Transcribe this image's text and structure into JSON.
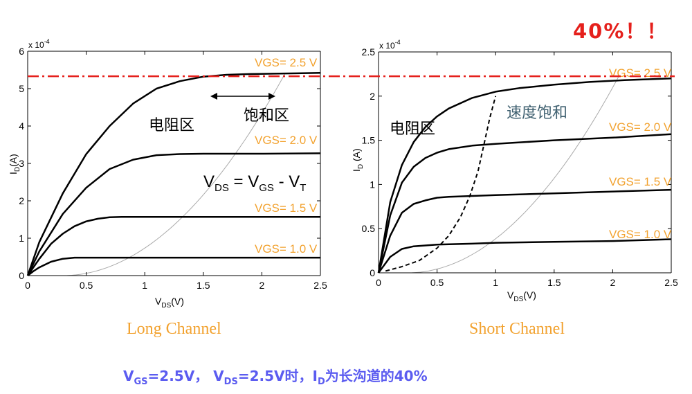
{
  "headline": {
    "text": "40%！！",
    "color": "#e5201c"
  },
  "footer": {
    "vgs_main": "V",
    "vgs_sub": "GS",
    "vgs_rest": "=2.5V，",
    "vds_main": "V",
    "vds_sub": "DS",
    "vds_rest": "=2.5V时，",
    "id_main": "I",
    "id_sub": "D",
    "id_rest": "为长沟道的40%"
  },
  "colors": {
    "curve": "#000000",
    "parabola": "#aaaaaa",
    "vgs_label": "#f2a22f",
    "ref_line": "#e5201c",
    "annotation": "#3f6070"
  },
  "chart_data": [
    {
      "type": "line",
      "caption": "Long Channel",
      "ylabel": "I_D(A)",
      "xlabel": "V_DS(V)",
      "exponent_label": "x 10",
      "exponent_power": "-4",
      "xlim": [
        0,
        2.5
      ],
      "ylim": [
        0,
        6
      ],
      "xticks": [
        "0",
        "0.5",
        "1",
        "1.5",
        "2",
        "2.5"
      ],
      "yticks": [
        "0",
        "1",
        "2",
        "3",
        "4",
        "5",
        "6"
      ],
      "series": [
        {
          "name": "VGS= 2.5 V",
          "x": [
            0,
            0.1,
            0.3,
            0.5,
            0.7,
            0.9,
            1.1,
            1.3,
            1.5,
            1.7,
            1.9,
            2.1,
            2.3,
            2.5
          ],
          "y": [
            0,
            0.9,
            2.2,
            3.25,
            4.0,
            4.6,
            5.0,
            5.2,
            5.32,
            5.37,
            5.39,
            5.4,
            5.41,
            5.42
          ]
        },
        {
          "name": "VGS= 2.0 V",
          "x": [
            0,
            0.1,
            0.3,
            0.5,
            0.7,
            0.9,
            1.1,
            1.3,
            1.5,
            1.7,
            2.0,
            2.5
          ],
          "y": [
            0,
            0.65,
            1.65,
            2.35,
            2.85,
            3.1,
            3.22,
            3.25,
            3.26,
            3.26,
            3.26,
            3.27
          ]
        },
        {
          "name": "VGS= 1.5 V",
          "x": [
            0,
            0.1,
            0.2,
            0.3,
            0.4,
            0.5,
            0.6,
            0.7,
            0.8,
            0.9,
            1.0,
            1.5,
            2.0,
            2.5
          ],
          "y": [
            0,
            0.45,
            0.85,
            1.12,
            1.32,
            1.45,
            1.52,
            1.56,
            1.57,
            1.57,
            1.57,
            1.57,
            1.57,
            1.57
          ]
        },
        {
          "name": "VGS= 1.0 V",
          "x": [
            0,
            0.05,
            0.1,
            0.2,
            0.3,
            0.4,
            0.5,
            0.6,
            1.0,
            1.5,
            2.0,
            2.5
          ],
          "y": [
            0,
            0.12,
            0.22,
            0.37,
            0.45,
            0.48,
            0.48,
            0.48,
            0.48,
            0.48,
            0.48,
            0.48
          ]
        }
      ],
      "annotations": {
        "region_linear": "电阻区",
        "region_sat": "饱和区",
        "equation": {
          "v1": "V",
          "s1": "DS",
          "eq": " = V",
          "s2": "GS",
          "minus": " - V",
          "s3": "T"
        }
      }
    },
    {
      "type": "line",
      "caption": "Short Channel",
      "ylabel": "I_D (A)",
      "xlabel": "V_DS(V)",
      "exponent_label": "x 10",
      "exponent_power": "-4",
      "xlim": [
        0,
        2.5
      ],
      "ylim": [
        0,
        2.5
      ],
      "xticks": [
        "0",
        "0.5",
        "1",
        "1.5",
        "2",
        "2.5"
      ],
      "yticks": [
        "0",
        "0.5",
        "1",
        "1.5",
        "2",
        "2.5"
      ],
      "series": [
        {
          "name": "VGS= 2.5 V",
          "x": [
            0,
            0.1,
            0.2,
            0.3,
            0.4,
            0.5,
            0.6,
            0.8,
            1.0,
            1.2,
            1.5,
            1.8,
            2.1,
            2.5
          ],
          "y": [
            0,
            0.8,
            1.22,
            1.48,
            1.65,
            1.77,
            1.86,
            1.98,
            2.05,
            2.09,
            2.13,
            2.16,
            2.18,
            2.2
          ]
        },
        {
          "name": "VGS= 2.0 V",
          "x": [
            0,
            0.1,
            0.2,
            0.3,
            0.4,
            0.5,
            0.6,
            0.8,
            1.0,
            1.5,
            2.0,
            2.5
          ],
          "y": [
            0,
            0.65,
            1.02,
            1.2,
            1.3,
            1.36,
            1.4,
            1.44,
            1.46,
            1.5,
            1.53,
            1.57
          ]
        },
        {
          "name": "VGS= 1.5 V",
          "x": [
            0,
            0.1,
            0.2,
            0.3,
            0.4,
            0.5,
            0.6,
            0.8,
            1.0,
            1.5,
            2.0,
            2.5
          ],
          "y": [
            0,
            0.42,
            0.68,
            0.78,
            0.82,
            0.85,
            0.86,
            0.87,
            0.88,
            0.9,
            0.92,
            0.94
          ]
        },
        {
          "name": "VGS= 1.0 V",
          "x": [
            0,
            0.1,
            0.2,
            0.3,
            0.5,
            0.8,
            1.0,
            1.5,
            2.0,
            2.5
          ],
          "y": [
            0,
            0.18,
            0.27,
            0.3,
            0.32,
            0.33,
            0.34,
            0.35,
            0.36,
            0.38
          ]
        }
      ],
      "velocity_sat": {
        "x": [
          0.06,
          0.2,
          0.35,
          0.5,
          0.6,
          0.7,
          0.78,
          0.85,
          0.9,
          0.95,
          1.0
        ],
        "y": [
          0.02,
          0.07,
          0.14,
          0.28,
          0.42,
          0.63,
          0.87,
          1.15,
          1.45,
          1.75,
          2.0
        ]
      },
      "annotations": {
        "region_linear": "电阻区",
        "region_sat": "速度饱和"
      }
    }
  ]
}
